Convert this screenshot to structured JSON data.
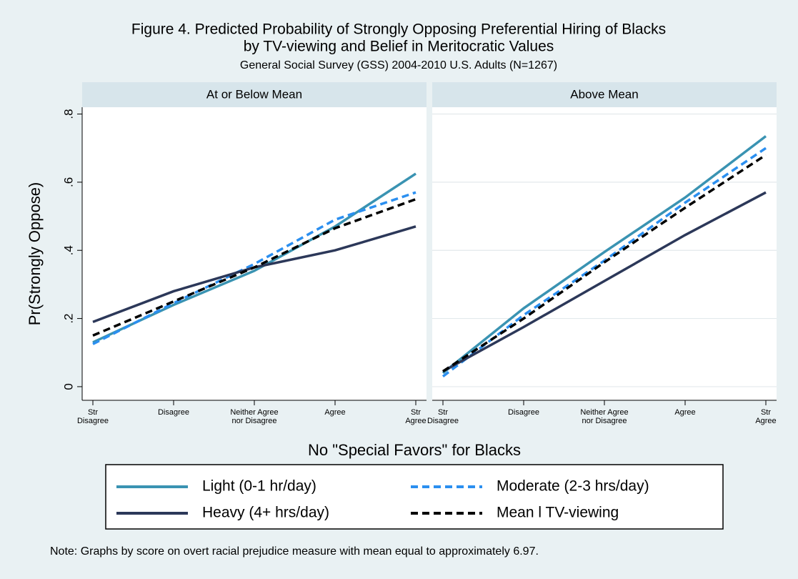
{
  "title": "Figure 4. Predicted Probability of Strongly Opposing Preferential Hiring of Blacks",
  "title_line2": "by TV-viewing and Belief in Meritocratic Values",
  "subtitle": "General Social Survey (GSS) 2004-2010 U.S. Adults (N=1267)",
  "x_label": "No \"Special Favors\" for Blacks",
  "y_label": "Pr(Strongly Oppose)",
  "note": "Note: Graphs by score on overt racial prejudice measure with mean equal to approximately 6.97.",
  "chart_data": [
    {
      "type": "line",
      "title": "At or Below Mean",
      "categories": [
        "Str\nDisagree",
        "Disagree",
        "Neither Agree\nnor Disagree",
        "Agree",
        "Str\nAgree"
      ],
      "ylim": [
        -0.04,
        0.82
      ],
      "yticks": [
        0,
        {
          "value": 0.2,
          "label": ".2"
        },
        {
          "value": 0.4,
          "label": ".4"
        },
        {
          "value": 0.6,
          "label": ".6"
        },
        {
          "value": 0.8,
          "label": ".8"
        }
      ],
      "grid": false,
      "tick_labels": true,
      "series": [
        {
          "name": "Light (0-1 hr/day)",
          "color": "#3a93b2",
          "dashed": false,
          "values": [
            0.13,
            0.24,
            0.34,
            0.47,
            0.625
          ]
        },
        {
          "name": "Moderate (2-3 hrs/day)",
          "color": "#2b8ff0",
          "dashed": true,
          "values": [
            0.125,
            0.245,
            0.36,
            0.49,
            0.57
          ]
        },
        {
          "name": "Heavy (4+ hrs/day)",
          "color": "#2c3859",
          "dashed": false,
          "values": [
            0.19,
            0.28,
            0.35,
            0.4,
            0.47
          ]
        },
        {
          "name": "Mean l TV-viewing",
          "color": "#000000",
          "dashed": true,
          "values": [
            0.15,
            0.25,
            0.35,
            0.465,
            0.55
          ]
        }
      ]
    },
    {
      "type": "line",
      "title": "Above Mean",
      "categories": [
        "Str\nDisagree",
        "Disagree",
        "Neither Agree\nnor Disagree",
        "Agree",
        "Str\nAgree"
      ],
      "ylim": [
        -0.04,
        0.82
      ],
      "yticks": [
        0,
        {
          "value": 0.2,
          "label": ".2"
        },
        {
          "value": 0.4,
          "label": ".4"
        },
        {
          "value": 0.6,
          "label": ".6"
        },
        {
          "value": 0.8,
          "label": ".8"
        }
      ],
      "grid": true,
      "tick_labels": false,
      "series": [
        {
          "name": "Light (0-1 hr/day)",
          "color": "#3a93b2",
          "dashed": false,
          "values": [
            0.04,
            0.23,
            0.395,
            0.555,
            0.735
          ]
        },
        {
          "name": "Moderate (2-3 hrs/day)",
          "color": "#2b8ff0",
          "dashed": true,
          "values": [
            0.03,
            0.21,
            0.37,
            0.54,
            0.7
          ]
        },
        {
          "name": "Heavy (4+ hrs/day)",
          "color": "#2c3859",
          "dashed": false,
          "values": [
            0.045,
            0.175,
            0.31,
            0.445,
            0.57
          ]
        },
        {
          "name": "Mean l TV-viewing",
          "color": "#000000",
          "dashed": true,
          "values": [
            0.045,
            0.2,
            0.365,
            0.525,
            0.68
          ]
        }
      ]
    }
  ]
}
